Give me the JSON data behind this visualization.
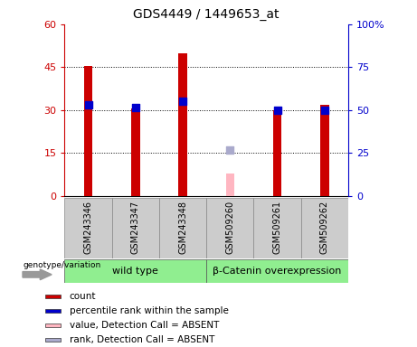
{
  "title": "GDS4449 / 1449653_at",
  "samples": [
    "GSM243346",
    "GSM243347",
    "GSM243348",
    "GSM509260",
    "GSM509261",
    "GSM509262"
  ],
  "group_labels": [
    "wild type",
    "β-Catenin overexpression"
  ],
  "count_values": [
    45.5,
    30.5,
    50.0,
    null,
    30.0,
    32.0
  ],
  "rank_values": [
    32.0,
    31.0,
    33.0,
    null,
    30.0,
    30.0
  ],
  "absent_value": [
    null,
    null,
    null,
    8.0,
    null,
    null
  ],
  "absent_rank": [
    null,
    null,
    null,
    16.0,
    null,
    null
  ],
  "count_color": "#cc0000",
  "rank_color": "#0000cc",
  "absent_value_color": "#ffb6c1",
  "absent_rank_color": "#aaaacc",
  "ylim_left": [
    0,
    60
  ],
  "ylim_right": [
    0,
    100
  ],
  "yticks_left": [
    0,
    15,
    30,
    45,
    60
  ],
  "ytick_labels_left": [
    "0",
    "15",
    "30",
    "45",
    "60"
  ],
  "yticks_right": [
    0,
    25,
    50,
    75,
    100
  ],
  "ytick_labels_right": [
    "0",
    "25",
    "50",
    "75",
    "100%"
  ],
  "bar_width": 0.18,
  "rank_marker_size": 30,
  "bg_plot": "#ffffff",
  "bg_sample_row": "#cccccc",
  "genotype_label": "genotype/variation",
  "legend_items": [
    {
      "label": "count",
      "color": "#cc0000"
    },
    {
      "label": "percentile rank within the sample",
      "color": "#0000cc"
    },
    {
      "label": "value, Detection Call = ABSENT",
      "color": "#ffb6c1"
    },
    {
      "label": "rank, Detection Call = ABSENT",
      "color": "#aaaacc"
    }
  ]
}
